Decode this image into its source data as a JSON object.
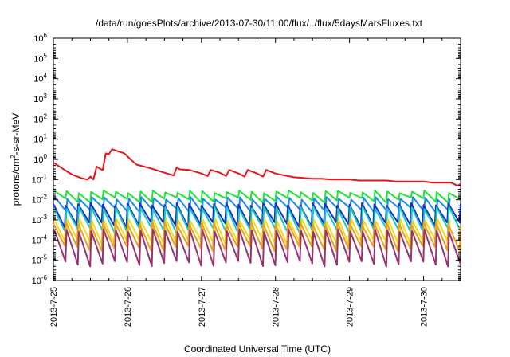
{
  "chart_data": {
    "type": "line",
    "title": "/data/run/goesPlots/archive/2013-07-30/11:00/flux/../flux/5daysMarsFluxes.txt",
    "xlabel": "Coordinated Universal Time (UTC)",
    "ylabel": "protons/cm2-s-sr-MeV",
    "ylabel_parts": [
      "protons/cm",
      "2",
      "-s-sr-MeV"
    ],
    "yscale": "log",
    "ylim": [
      1e-06,
      1000000.0
    ],
    "y_ticks": [
      {
        "base": "10",
        "exp": "6",
        "value": 1000000.0
      },
      {
        "base": "10",
        "exp": "5",
        "value": 100000.0
      },
      {
        "base": "10",
        "exp": "4",
        "value": 10000.0
      },
      {
        "base": "10",
        "exp": "3",
        "value": 1000.0
      },
      {
        "base": "10",
        "exp": "2",
        "value": 100.0
      },
      {
        "base": "10",
        "exp": "1",
        "value": 10.0
      },
      {
        "base": "10",
        "exp": "0",
        "value": 1.0
      },
      {
        "base": "10",
        "exp": "-1",
        "value": 0.1
      },
      {
        "base": "10",
        "exp": "-2",
        "value": 0.01
      },
      {
        "base": "10",
        "exp": "-3",
        "value": 0.001
      },
      {
        "base": "10",
        "exp": "-4",
        "value": 0.0001
      },
      {
        "base": "10",
        "exp": "-5",
        "value": 1e-05
      },
      {
        "base": "10",
        "exp": "-6",
        "value": 1e-06
      }
    ],
    "xlim": [
      "2013-07-25 00:00",
      "2013-07-30 12:00"
    ],
    "x_ticks": [
      "2013-7-25",
      "2013-7-26",
      "2013-7-27",
      "2013-7-28",
      "2013-7-29",
      "2013-7-30"
    ],
    "grid": false,
    "legend": "none",
    "series": [
      {
        "color": "#e8161a",
        "x": [
          "2013-07-25 00:00",
          "2013-07-25 03:00",
          "2013-07-25 06:00",
          "2013-07-25 09:00",
          "2013-07-25 11:00",
          "2013-07-25 12:00",
          "2013-07-25 13:00",
          "2013-07-25 14:00",
          "2013-07-25 15:00",
          "2013-07-25 16:00",
          "2013-07-25 17:00",
          "2013-07-25 18:00",
          "2013-07-25 19:00",
          "2013-07-25 21:00",
          "2013-07-25 23:00",
          "2013-07-26 01:00",
          "2013-07-26 03:00",
          "2013-07-26 07:00",
          "2013-07-26 12:00",
          "2013-07-26 15:00",
          "2013-07-26 16:00",
          "2013-07-26 17:00",
          "2013-07-26 20:00",
          "2013-07-27 00:00",
          "2013-07-27 02:00",
          "2013-07-27 03:00",
          "2013-07-27 06:00",
          "2013-07-27 08:00",
          "2013-07-27 09:00",
          "2013-07-27 12:00",
          "2013-07-27 14:00",
          "2013-07-27 15:00",
          "2013-07-27 18:00",
          "2013-07-27 20:00",
          "2013-07-27 21:00",
          "2013-07-28 00:00",
          "2013-07-28 03:00",
          "2013-07-28 06:00",
          "2013-07-28 09:00",
          "2013-07-28 12:00",
          "2013-07-28 15:00",
          "2013-07-28 18:00",
          "2013-07-28 21:00",
          "2013-07-29 00:00",
          "2013-07-29 03:00",
          "2013-07-29 06:00",
          "2013-07-29 09:00",
          "2013-07-29 12:00",
          "2013-07-29 15:00",
          "2013-07-29 18:00",
          "2013-07-29 21:00",
          "2013-07-30 00:00",
          "2013-07-30 03:00",
          "2013-07-30 06:00",
          "2013-07-30 09:00",
          "2013-07-30 11:00",
          "2013-07-30 12:00"
        ],
        "values": [
          0.7,
          0.35,
          0.18,
          0.12,
          0.1,
          0.14,
          0.1,
          0.45,
          0.35,
          0.3,
          2.0,
          1.8,
          3.2,
          2.5,
          2.0,
          1.0,
          0.55,
          0.38,
          0.22,
          0.16,
          0.4,
          0.32,
          0.3,
          0.2,
          0.15,
          0.3,
          0.22,
          0.15,
          0.3,
          0.2,
          0.14,
          0.3,
          0.2,
          0.14,
          0.3,
          0.2,
          0.16,
          0.13,
          0.12,
          0.11,
          0.11,
          0.1,
          0.1,
          0.1,
          0.09,
          0.09,
          0.09,
          0.09,
          0.08,
          0.08,
          0.08,
          0.08,
          0.07,
          0.07,
          0.07,
          0.05,
          0.06
        ]
      },
      {
        "color": "#22e33a",
        "peak": 0.025,
        "trough": 0.01,
        "period_h": 4
      },
      {
        "color": "#1a8cf0",
        "peak": 0.012,
        "trough": 0.003,
        "period_h": 4
      },
      {
        "color": "#1530c8",
        "peak": 0.006,
        "trough": 0.0006,
        "period_h": 4
      },
      {
        "color": "#19c9bd",
        "peak": 0.004,
        "trough": 0.0003,
        "period_h": 4
      },
      {
        "color": "#f0dc18",
        "peak": 0.001,
        "trough": 6e-05,
        "period_h": 4
      },
      {
        "color": "#e8a020",
        "peak": 0.0007,
        "trough": 4e-05,
        "period_h": 4
      },
      {
        "color": "#9a3270",
        "peak": 0.0003,
        "trough": 7e-06,
        "period_h": 4
      }
    ]
  }
}
